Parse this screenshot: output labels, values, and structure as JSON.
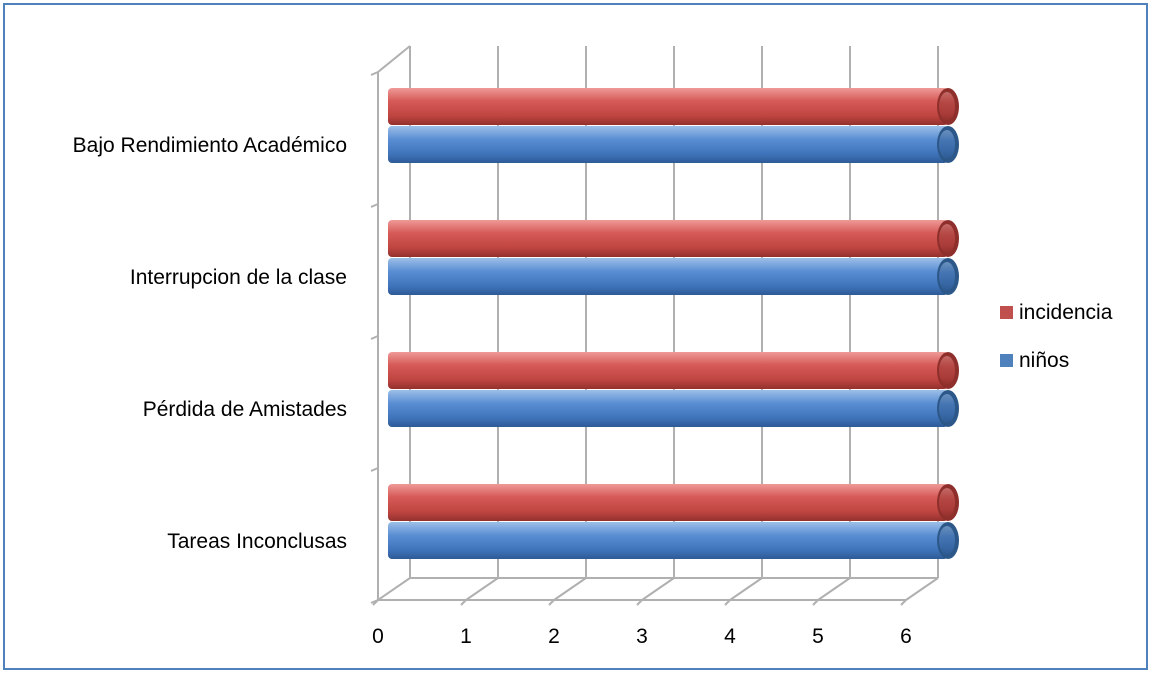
{
  "chart_data": {
    "type": "bar",
    "orientation": "horizontal",
    "style": "3d-cylinder",
    "categories": [
      "Tareas Inconclusas",
      "Pérdida de Amistades",
      "Interrupcion de la clase",
      "Bajo Rendimiento Académico"
    ],
    "series": [
      {
        "name": "niños",
        "color": "#4f81bd",
        "values": [
          6,
          6,
          6,
          6
        ]
      },
      {
        "name": "incidencia",
        "color": "#c0504d",
        "values": [
          6,
          6,
          6,
          6
        ]
      }
    ],
    "xlim": [
      0,
      6
    ],
    "xticks": [
      "0",
      "1",
      "2",
      "3",
      "4",
      "5",
      "6"
    ],
    "grid": true,
    "legend": {
      "placement": "right",
      "entries": [
        {
          "label": "incidencia",
          "color": "#c0504d"
        },
        {
          "label": "niños",
          "color": "#4f81bd"
        }
      ]
    }
  }
}
